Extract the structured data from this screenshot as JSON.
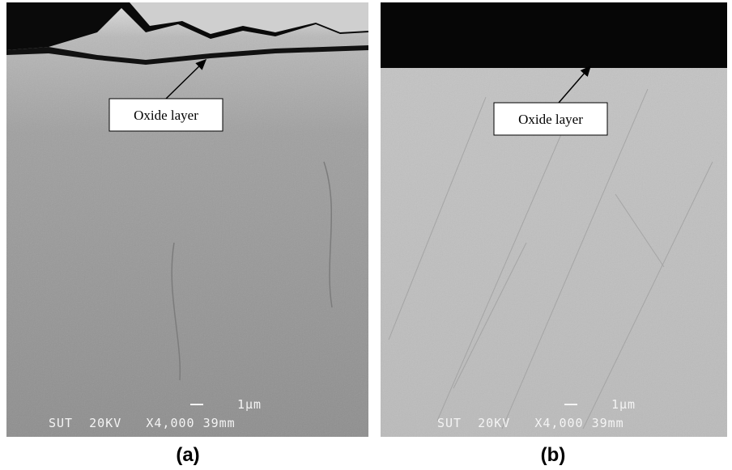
{
  "panels": [
    {
      "label": "(a)",
      "annotation": "Oxide layer",
      "scale_bar": "1µm",
      "info": "SUT  20KV   X4,000 39mm"
    },
    {
      "label": "(b)",
      "annotation": "Oxide layer",
      "scale_bar": "1µm",
      "info": "SUT  20KV   X4,000 39mm"
    }
  ]
}
